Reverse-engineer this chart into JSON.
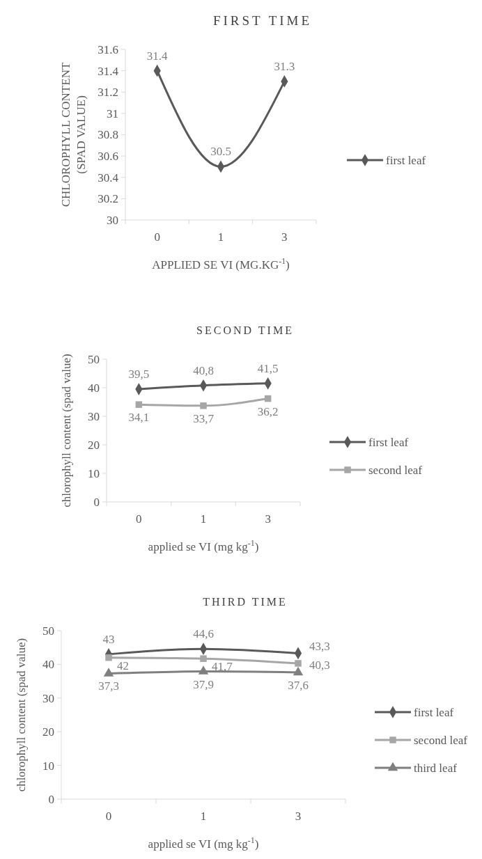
{
  "chart_data": [
    {
      "type": "line",
      "title": "FIRST TIME",
      "xlabel": "APPLIED SE VI (MG.KG$^{-1}$)",
      "ylabel": "CHLOROPHYLL CONTENT (SPAD VALUE)",
      "categories": [
        "0",
        "1",
        "3"
      ],
      "ylim": [
        30,
        31.6
      ],
      "yticks": [
        30,
        30.2,
        30.4,
        30.6,
        30.8,
        31,
        31.2,
        31.4,
        31.6
      ],
      "legend": "right",
      "series": [
        {
          "name": "first leaf",
          "color": "#595959",
          "marker": "diamond",
          "values": [
            31.4,
            30.5,
            31.3
          ],
          "value_labels": [
            "31.4",
            "30.5",
            "31.3"
          ]
        }
      ]
    },
    {
      "type": "line",
      "title": "SECOND TIME",
      "xlabel": "applied se VI (mg kg$^{-1}$)",
      "ylabel": "chlorophyll content (spad value)",
      "categories": [
        "0",
        "1",
        "3"
      ],
      "ylim": [
        0,
        50
      ],
      "yticks": [
        0,
        10,
        20,
        30,
        40,
        50
      ],
      "legend": "right",
      "series": [
        {
          "name": "first leaf",
          "color": "#595959",
          "marker": "diamond",
          "values": [
            39.5,
            40.8,
            41.5
          ],
          "value_labels": [
            "39,5",
            "40,8",
            "41,5"
          ]
        },
        {
          "name": "second leaf",
          "color": "#a6a6a6",
          "marker": "square",
          "values": [
            34.1,
            33.7,
            36.2
          ],
          "value_labels": [
            "34,1",
            "33,7",
            "36,2"
          ]
        }
      ]
    },
    {
      "type": "line",
      "title": "THIRD TIME",
      "xlabel": "applied se VI (mg kg$^{-1}$)",
      "ylabel": "chlorophyll content (spad value)",
      "categories": [
        "0",
        "1",
        "3"
      ],
      "ylim": [
        0,
        50
      ],
      "yticks": [
        0,
        10,
        20,
        30,
        40,
        50
      ],
      "legend": "right",
      "series": [
        {
          "name": "first leaf",
          "color": "#595959",
          "marker": "diamond",
          "values": [
            43,
            44.6,
            43.3
          ],
          "value_labels": [
            "43",
            "44,6",
            "43,3"
          ]
        },
        {
          "name": "second leaf",
          "color": "#a6a6a6",
          "marker": "square",
          "values": [
            42,
            41.7,
            40.3
          ],
          "value_labels": [
            "42",
            "41,7",
            "40,3"
          ]
        },
        {
          "name": "third leaf",
          "color": "#7f7f7f",
          "marker": "triangle",
          "values": [
            37.3,
            37.9,
            37.6
          ],
          "value_labels": [
            "37,3",
            "37,9",
            "37,6"
          ]
        }
      ]
    }
  ]
}
